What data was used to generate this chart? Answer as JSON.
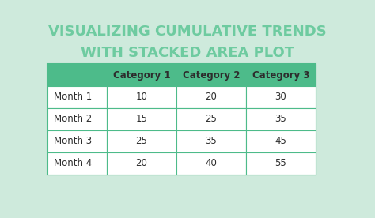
{
  "title_line1": "VISUALIZING CUMULATIVE TRENDS",
  "title_line2": "WITH STACKED AREA PLOT",
  "title_color": "#6ecba0",
  "background_color": "#ceeadc",
  "table_header": [
    "",
    "Category 1",
    "Category 2",
    "Category 3"
  ],
  "table_rows": [
    [
      "Month 1",
      "10",
      "20",
      "30"
    ],
    [
      "Month 2",
      "15",
      "25",
      "35"
    ],
    [
      "Month 3",
      "25",
      "35",
      "45"
    ],
    [
      "Month 4",
      "20",
      "40",
      "55"
    ]
  ],
  "header_bg_color": "#4dbb8a",
  "header_text_color": "#2d2d2d",
  "row_text_color": "#2d2d2d",
  "row_bg_color": "#ffffff",
  "table_border_color": "#4dbb8a"
}
